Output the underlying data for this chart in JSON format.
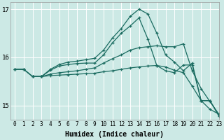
{
  "xlabel": "Humidex (Indice chaleur)",
  "ylabel": "",
  "background_color": "#cce9e5",
  "line_color": "#1a6b60",
  "grid_color": "#ffffff",
  "xmin": -0.5,
  "xmax": 23,
  "ymin": 14.7,
  "ymax": 17.15,
  "yticks": [
    15,
    16,
    17
  ],
  "xticks": [
    0,
    1,
    2,
    3,
    4,
    5,
    6,
    7,
    8,
    9,
    10,
    11,
    12,
    13,
    14,
    15,
    16,
    17,
    18,
    19,
    20,
    21,
    22,
    23
  ],
  "lines": [
    {
      "x": [
        2,
        3,
        4,
        5,
        6,
        7,
        8,
        9,
        10,
        11,
        12,
        13,
        14,
        15,
        16,
        17,
        18,
        19,
        20,
        21,
        22,
        23
      ],
      "y": [
        15.6,
        15.6,
        15.75,
        15.85,
        15.9,
        15.92,
        15.95,
        15.98,
        16.15,
        16.4,
        16.6,
        16.85,
        17.0,
        16.9,
        16.5,
        16.05,
        15.9,
        15.72,
        15.88,
        15.1,
        15.1,
        14.8
      ]
    },
    {
      "x": [
        0,
        1,
        2,
        3,
        4,
        5,
        6,
        7,
        8,
        9,
        10,
        11,
        12,
        13,
        14,
        15,
        16,
        17,
        18,
        19,
        20,
        21,
        22,
        23
      ],
      "y": [
        15.75,
        15.75,
        15.6,
        15.6,
        15.73,
        15.82,
        15.85,
        15.87,
        15.88,
        15.88,
        16.05,
        16.3,
        16.5,
        16.65,
        16.82,
        16.38,
        15.83,
        15.72,
        15.68,
        15.84,
        15.84,
        15.1,
        15.1,
        14.78
      ]
    },
    {
      "x": [
        0,
        1,
        2,
        3,
        4,
        5,
        6,
        7,
        8,
        9,
        10,
        11,
        12,
        13,
        14,
        15,
        16,
        17,
        18,
        19,
        20,
        21,
        22,
        23
      ],
      "y": [
        15.75,
        15.75,
        15.6,
        15.6,
        15.65,
        15.68,
        15.7,
        15.72,
        15.75,
        15.78,
        15.88,
        15.97,
        16.05,
        16.15,
        16.2,
        16.22,
        16.24,
        16.22,
        16.22,
        16.28,
        15.72,
        15.35,
        15.08,
        14.82
      ]
    },
    {
      "x": [
        0,
        1,
        2,
        3,
        4,
        5,
        6,
        7,
        8,
        9,
        10,
        11,
        12,
        13,
        14,
        15,
        16,
        17,
        18,
        19,
        20,
        21,
        22,
        23
      ],
      "y": [
        15.75,
        15.75,
        15.6,
        15.6,
        15.62,
        15.63,
        15.64,
        15.65,
        15.66,
        15.67,
        15.7,
        15.72,
        15.75,
        15.78,
        15.8,
        15.82,
        15.83,
        15.8,
        15.73,
        15.68,
        15.4,
        15.1,
        14.92,
        14.82
      ]
    }
  ]
}
